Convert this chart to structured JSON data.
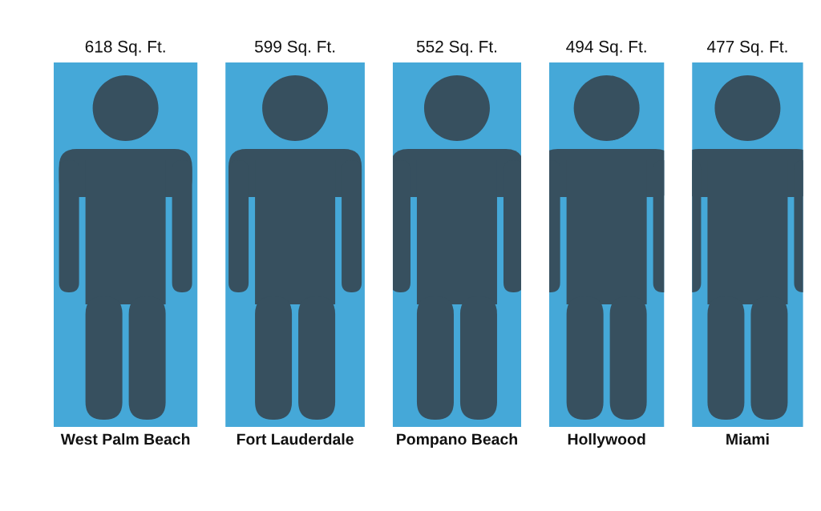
{
  "chart_data": {
    "type": "other",
    "categories": [
      "West Palm Beach",
      "Fort Lauderdale",
      "Pompano Beach",
      "Hollywood",
      "Miami"
    ],
    "values": [
      618,
      599,
      552,
      494,
      477
    ],
    "value_labels": [
      "618 Sq. Ft.",
      "599 Sq. Ft.",
      "552 Sq. Ft.",
      "494 Sq. Ft.",
      "477 Sq. Ft."
    ],
    "color": "#45a8d8"
  }
}
